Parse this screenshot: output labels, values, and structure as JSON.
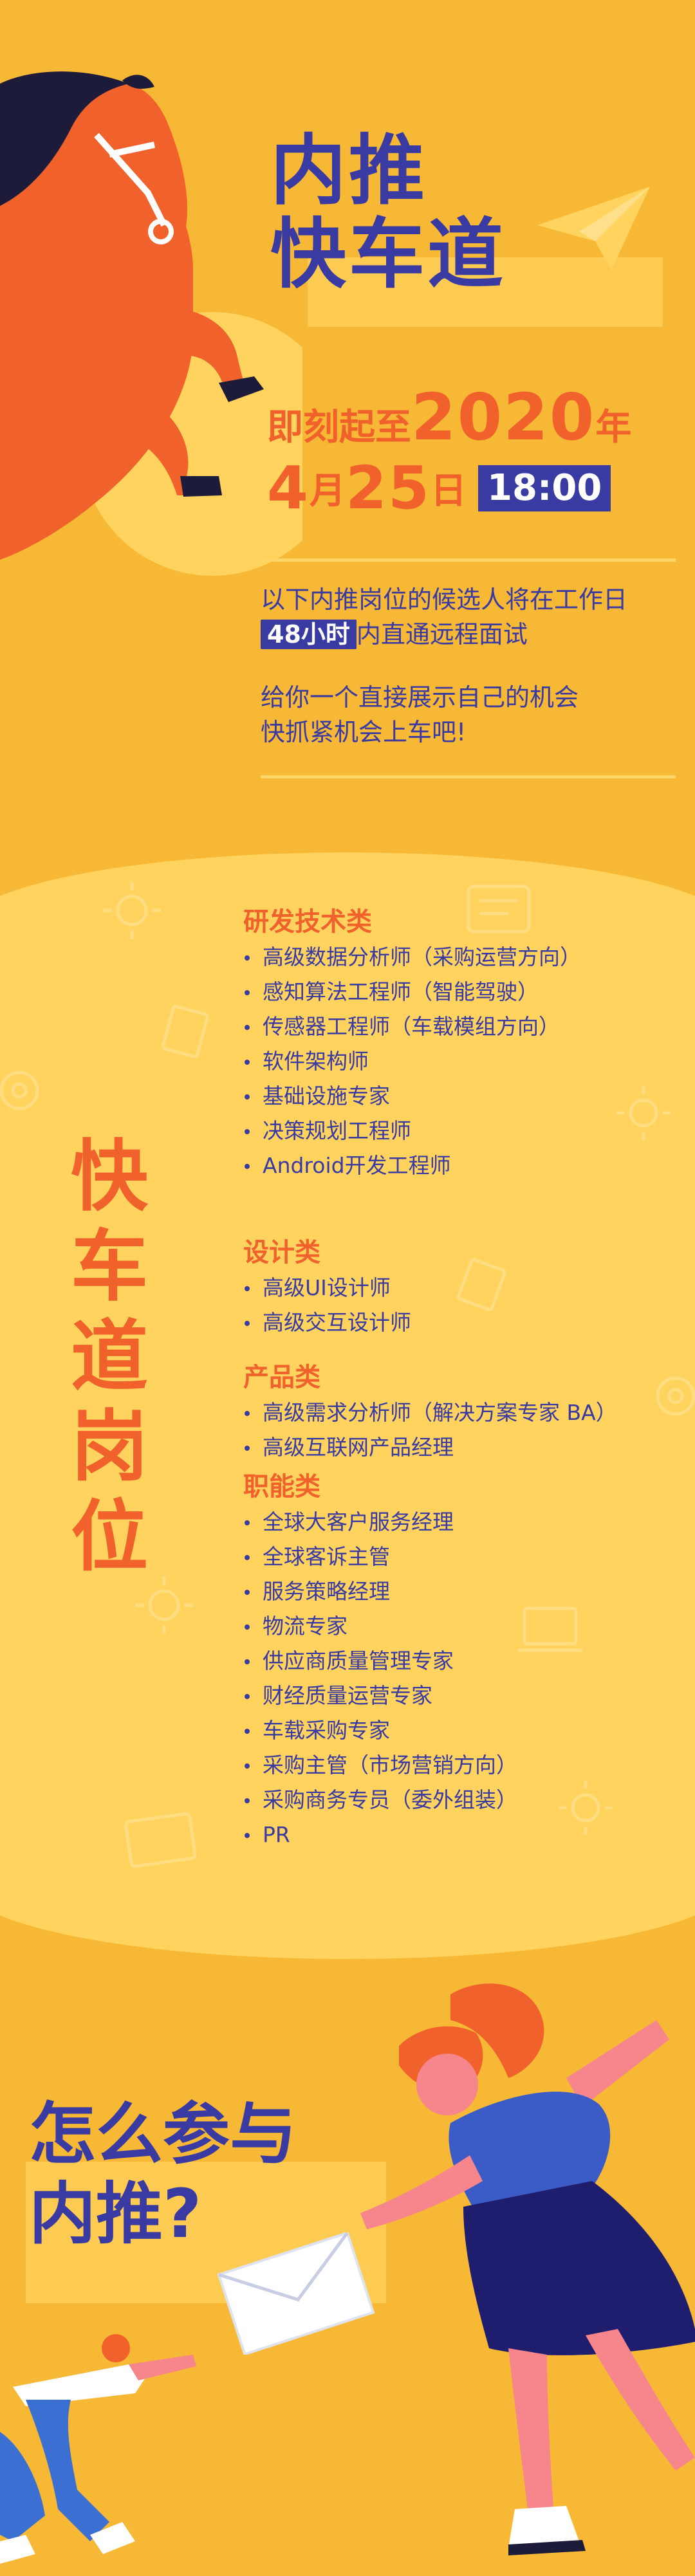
{
  "header": {
    "title_line1": "内推",
    "title_line2": "快车道"
  },
  "deadline": {
    "prefix": "即刻起至",
    "year": "2020",
    "year_unit": "年",
    "month": "4",
    "month_unit": "月",
    "day": "25",
    "day_unit": "日",
    "time": "18:00"
  },
  "intro": {
    "line1": "以下内推岗位的候选人将在工作日",
    "tag": "48小时",
    "line2_rest": "内直通远程面试",
    "line3": "给你一个直接展示自己的机会",
    "line4": "快抓紧机会上车吧!"
  },
  "jobs_section": {
    "vertical_title": [
      "快",
      "车",
      "道",
      "岗",
      "位"
    ],
    "categories": [
      {
        "name": "研发技术类",
        "items": [
          "高级数据分析师（采购运营方向）",
          "感知算法工程师（智能驾驶）",
          "传感器工程师（车载模组方向）",
          "软件架构师",
          "基础设施专家",
          "决策规划工程师",
          "Android开发工程师"
        ]
      },
      {
        "name": "设计类",
        "items": [
          "高级UI设计师",
          "高级交互设计师"
        ]
      },
      {
        "name": "产品类",
        "items": [
          "高级需求分析师（解决方案专家 BA）",
          "高级互联网产品经理"
        ]
      },
      {
        "name": "职能类",
        "items": [
          "全球大客户服务经理",
          "全球客诉主管",
          "服务策略经理",
          "物流专家",
          "供应商质量管理专家",
          "财经质量运营专家",
          "车载采购专家",
          "采购主管（市场营销方向）",
          "采购商务专员（委外组装）",
          "PR"
        ]
      }
    ]
  },
  "how": {
    "line1": "怎么参与",
    "line2": "内推?"
  },
  "colors": {
    "background": "#f7b835",
    "band": "#ffd35e",
    "accent_orange": "#f0612c",
    "navy": "#3a3aa3",
    "dark_navy": "#1f1d6e"
  }
}
